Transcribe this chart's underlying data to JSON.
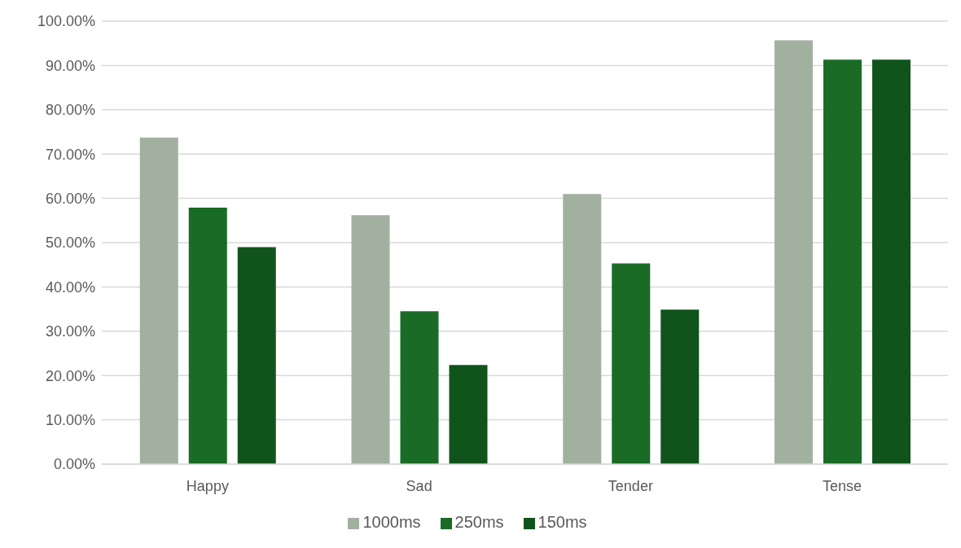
{
  "chart_data": {
    "type": "bar",
    "categories": [
      "Happy",
      "Sad",
      "Tender",
      "Tense"
    ],
    "series": [
      {
        "name": "1000ms",
        "color": "#a2b0a0",
        "values": [
          73.7,
          56.2,
          61.0,
          95.7
        ]
      },
      {
        "name": "250ms",
        "color": "#1a6b26",
        "values": [
          57.9,
          34.5,
          45.3,
          91.3
        ]
      },
      {
        "name": "150ms",
        "color": "#10541c",
        "values": [
          49.0,
          22.4,
          34.9,
          91.3
        ]
      }
    ],
    "ylim": [
      0,
      100
    ],
    "yticks": [
      {
        "value": 0,
        "label": "0.00%"
      },
      {
        "value": 10,
        "label": "10.00%"
      },
      {
        "value": 20,
        "label": "20.00%"
      },
      {
        "value": 30,
        "label": "30.00%"
      },
      {
        "value": 40,
        "label": "40.00%"
      },
      {
        "value": 50,
        "label": "50.00%"
      },
      {
        "value": 60,
        "label": "60.00%"
      },
      {
        "value": 70,
        "label": "70.00%"
      },
      {
        "value": 80,
        "label": "80.00%"
      },
      {
        "value": 90,
        "label": "90.00%"
      },
      {
        "value": 100,
        "label": "100.00%"
      }
    ],
    "grid": "y",
    "legend": "bottom"
  }
}
